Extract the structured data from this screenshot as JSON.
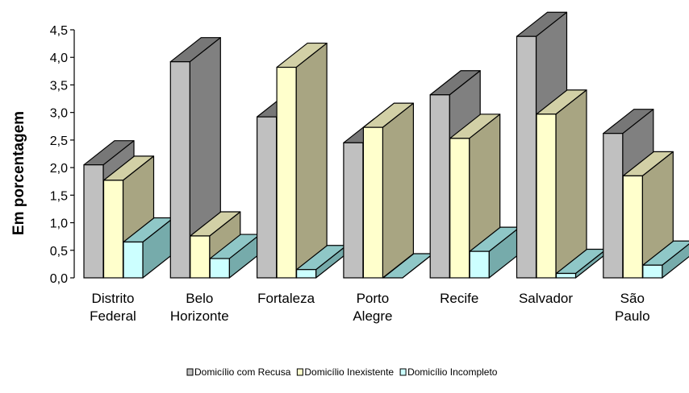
{
  "chart_data": {
    "type": "bar",
    "title": "",
    "xlabel": "",
    "ylabel": "Em porcentagem",
    "ylim": [
      0,
      4.5
    ],
    "yticks": [
      "0,0",
      "0,5",
      "1,0",
      "1,5",
      "2,0",
      "2,5",
      "3,0",
      "3,5",
      "4,0",
      "4,5"
    ],
    "categories": [
      [
        "Distrito",
        "Federal"
      ],
      [
        "Belo",
        "Horizonte"
      ],
      [
        "Fortaleza"
      ],
      [
        "Porto",
        "Alegre"
      ],
      [
        "Recife"
      ],
      [
        "Salvador"
      ],
      [
        "São",
        "Paulo"
      ]
    ],
    "series": [
      {
        "name": "Domicílio com Recusa",
        "values": [
          2.05,
          3.92,
          2.92,
          2.45,
          3.32,
          4.38,
          2.62
        ],
        "front": "#c0c0c0",
        "side": "#808080",
        "top": "#777777"
      },
      {
        "name": "Domicílio Inexistente",
        "values": [
          1.77,
          0.76,
          3.82,
          2.73,
          2.53,
          2.97,
          1.85
        ],
        "front": "#ffffcc",
        "side": "#a8a582",
        "top": "#d2d0a6"
      },
      {
        "name": "Domicílio Incompleto",
        "values": [
          0.65,
          0.35,
          0.15,
          0.0,
          0.48,
          0.08,
          0.23
        ],
        "front": "#ccffff",
        "side": "#76abab",
        "top": "#8fc7c7"
      }
    ],
    "legend_position": "bottom",
    "grid": false
  }
}
